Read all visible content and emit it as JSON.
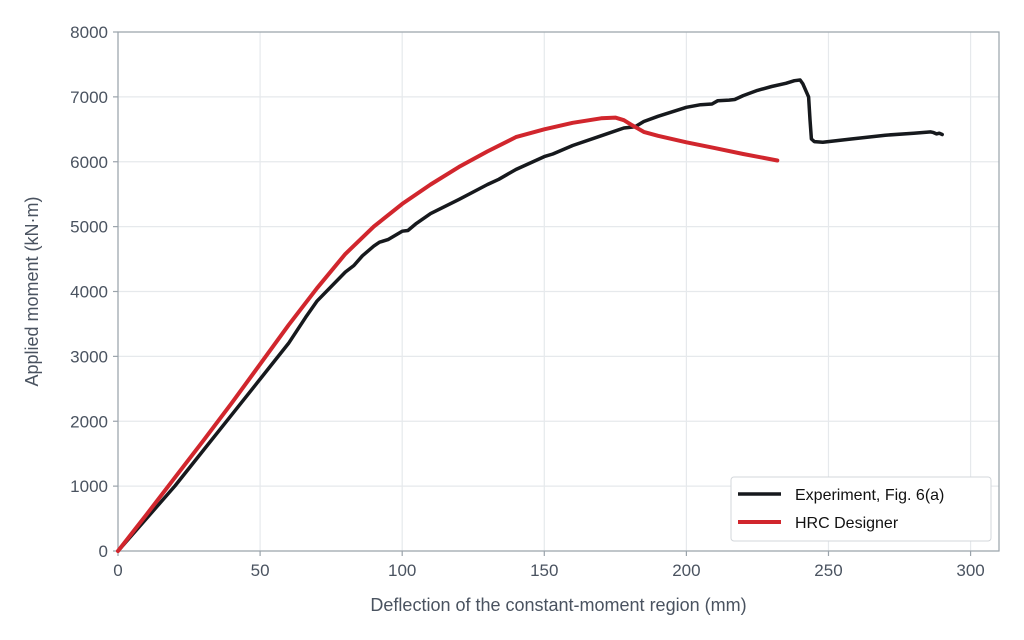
{
  "chart_data": {
    "type": "line",
    "title": "",
    "xlabel": "Deflection of the constant-moment region (mm)",
    "ylabel": "Applied moment (kN·m)",
    "xlim": [
      0,
      310
    ],
    "ylim": [
      0,
      8000
    ],
    "xticks": [
      0,
      50,
      100,
      150,
      200,
      250,
      300
    ],
    "yticks": [
      0,
      1000,
      2000,
      3000,
      4000,
      5000,
      6000,
      7000,
      8000
    ],
    "grid": true,
    "legend_position": "lower-right",
    "series": [
      {
        "name": "Experiment, Fig. 6(a)",
        "color": "#16191d",
        "points": [
          [
            0,
            0
          ],
          [
            10,
            500
          ],
          [
            20,
            1000
          ],
          [
            30,
            1550
          ],
          [
            40,
            2100
          ],
          [
            50,
            2650
          ],
          [
            60,
            3200
          ],
          [
            66,
            3600
          ],
          [
            70,
            3850
          ],
          [
            80,
            4300
          ],
          [
            83,
            4400
          ],
          [
            86,
            4550
          ],
          [
            90,
            4700
          ],
          [
            92,
            4760
          ],
          [
            95,
            4800
          ],
          [
            100,
            4930
          ],
          [
            102,
            4940
          ],
          [
            105,
            5050
          ],
          [
            110,
            5200
          ],
          [
            120,
            5420
          ],
          [
            130,
            5650
          ],
          [
            134,
            5730
          ],
          [
            140,
            5880
          ],
          [
            150,
            6080
          ],
          [
            153,
            6120
          ],
          [
            160,
            6250
          ],
          [
            170,
            6400
          ],
          [
            178,
            6520
          ],
          [
            182,
            6540
          ],
          [
            185,
            6620
          ],
          [
            190,
            6700
          ],
          [
            200,
            6840
          ],
          [
            205,
            6880
          ],
          [
            209,
            6890
          ],
          [
            211,
            6940
          ],
          [
            215,
            6950
          ],
          [
            217,
            6960
          ],
          [
            220,
            7020
          ],
          [
            225,
            7100
          ],
          [
            230,
            7160
          ],
          [
            235,
            7210
          ],
          [
            238,
            7250
          ],
          [
            240,
            7260
          ],
          [
            241,
            7200
          ],
          [
            243,
            7000
          ],
          [
            243.5,
            6650
          ],
          [
            244,
            6350
          ],
          [
            245,
            6310
          ],
          [
            248,
            6300
          ],
          [
            258,
            6350
          ],
          [
            270,
            6410
          ],
          [
            280,
            6440
          ],
          [
            286,
            6460
          ],
          [
            287,
            6450
          ],
          [
            288,
            6430
          ],
          [
            289,
            6440
          ],
          [
            290,
            6420
          ]
        ]
      },
      {
        "name": "HRC Designer",
        "color": "#d1262d",
        "points": [
          [
            0,
            0
          ],
          [
            10,
            560
          ],
          [
            20,
            1130
          ],
          [
            30,
            1700
          ],
          [
            40,
            2280
          ],
          [
            50,
            2880
          ],
          [
            60,
            3480
          ],
          [
            70,
            4050
          ],
          [
            80,
            4580
          ],
          [
            90,
            5000
          ],
          [
            100,
            5350
          ],
          [
            110,
            5650
          ],
          [
            120,
            5920
          ],
          [
            130,
            6160
          ],
          [
            140,
            6380
          ],
          [
            150,
            6500
          ],
          [
            160,
            6600
          ],
          [
            170,
            6670
          ],
          [
            175,
            6680
          ],
          [
            178,
            6640
          ],
          [
            181,
            6560
          ],
          [
            185,
            6460
          ],
          [
            190,
            6400
          ],
          [
            200,
            6300
          ],
          [
            210,
            6210
          ],
          [
            220,
            6120
          ],
          [
            232,
            6020
          ]
        ]
      }
    ]
  }
}
